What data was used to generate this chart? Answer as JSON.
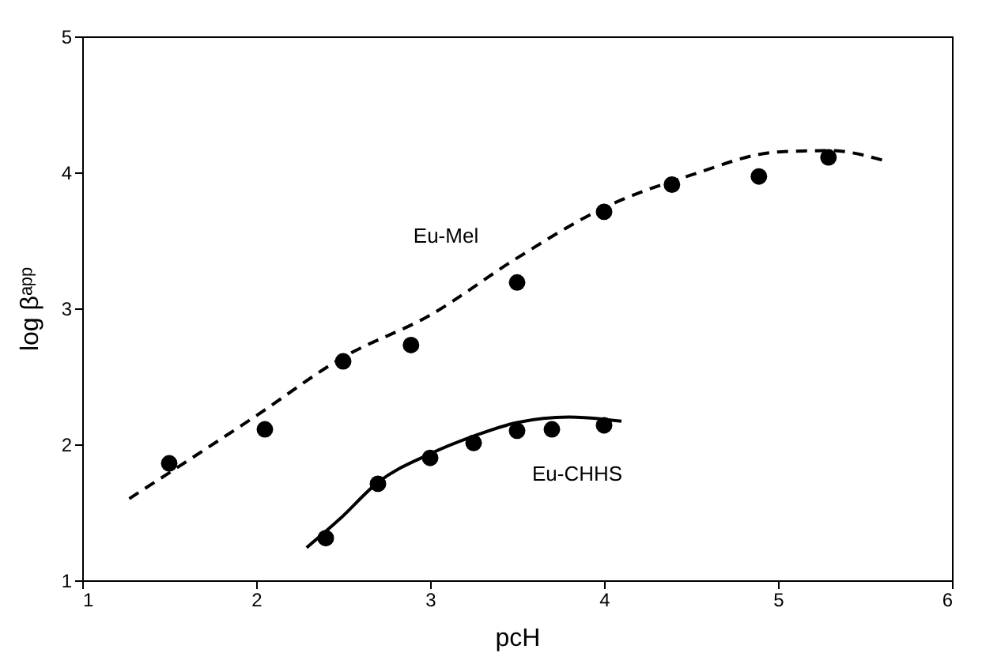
{
  "chart_data": {
    "type": "scatter",
    "xlabel": "pcH",
    "ylabel": "log βᵃᵖᵖ",
    "xlim": [
      1,
      6
    ],
    "xticks": [
      1,
      2,
      3,
      4,
      5,
      6
    ],
    "ylim": [
      1,
      5
    ],
    "yticks": [
      1,
      2,
      3,
      4,
      5
    ],
    "grid": false,
    "series": [
      {
        "marker": "circle",
        "color": "#000000",
        "x": [
          1.5,
          2.05,
          2.5,
          2.89,
          3.5,
          4.0,
          4.39,
          4.89,
          5.29
        ],
        "values": [
          1.86,
          2.11,
          2.61,
          2.73,
          3.19,
          3.71,
          3.91,
          3.97,
          4.11
        ]
      },
      {
        "marker": "circle",
        "color": "#000000",
        "x": [
          2.4,
          2.7,
          3.0,
          3.25,
          3.5,
          3.7,
          4.0
        ],
        "values": [
          1.31,
          1.71,
          1.9,
          2.01,
          2.1,
          2.11,
          2.14
        ]
      },
      {
        "type": "line",
        "name": "Eu-Mel",
        "line_style": "dashed",
        "color": "#000000",
        "x": [
          1.27,
          2.0,
          2.5,
          3.0,
          3.5,
          4.0,
          4.5,
          5.0,
          5.3,
          5.6
        ],
        "values": [
          1.6,
          2.21,
          2.64,
          2.95,
          3.37,
          3.74,
          3.98,
          4.15,
          4.16,
          4.09
        ]
      },
      {
        "type": "line",
        "name": "Eu-CHHS",
        "line_style": "solid",
        "color": "#000000",
        "x": [
          2.29,
          2.48,
          2.7,
          3.0,
          3.25,
          3.5,
          3.8,
          4.1
        ],
        "values": [
          1.24,
          1.45,
          1.72,
          1.93,
          2.06,
          2.16,
          2.2,
          2.17
        ]
      }
    ]
  }
}
